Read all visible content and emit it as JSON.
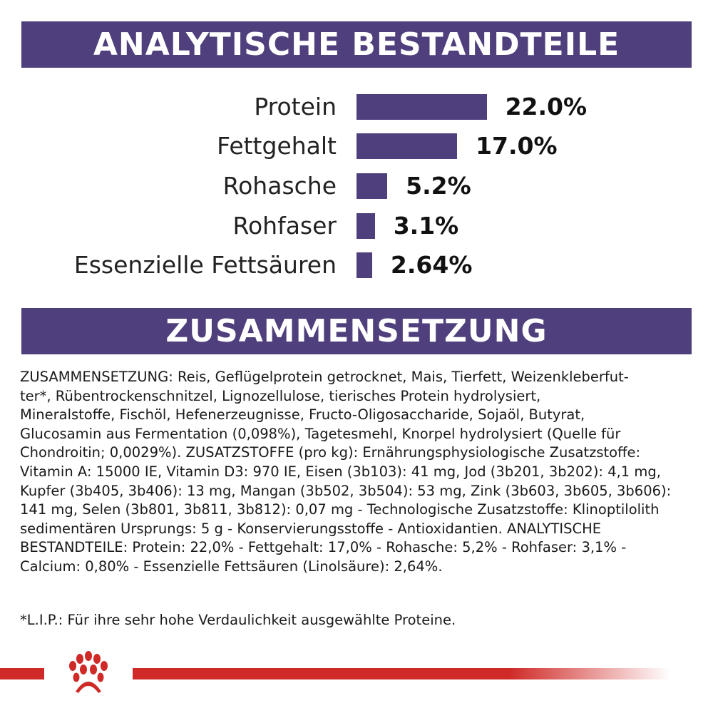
{
  "section1": {
    "title": "ANALYTISCHE BESTANDTEILE"
  },
  "chart_data": {
    "type": "bar",
    "orientation": "horizontal",
    "categories": [
      "Protein",
      "Fettgehalt",
      "Rohasche",
      "Rohfaser",
      "Essenzielle Fettsäuren"
    ],
    "values": [
      22.0,
      17.0,
      5.2,
      3.1,
      2.64
    ],
    "value_labels": [
      "22.0%",
      "17.0%",
      "5.2%",
      "3.1%",
      "2.64%"
    ],
    "unit": "%",
    "bar_color": "#4f3f7c"
  },
  "section2": {
    "title": "ZUSAMMENSETZUNG",
    "lines": [
      "ZUSAMMENSETZUNG: Reis, Geflügelprotein getrocknet, Mais, Tierfett, Weizenkleberfut-",
      "ter*, Rübentrockenschnitzel, Lignozellulose, tierisches Protein hydrolysiert,",
      "Mineralstoffe, Fischöl, Hefenerzeugnisse, Fructo-Oligosaccharide, Sojaöl, Butyrat,",
      "Glucosamin aus Fermentation (0,098%), Tagetesmehl, Knorpel hydrolysiert (Quelle für",
      "Chondroitin; 0,0029%). ZUSATZSTOFFE (pro kg): Ernährungsphysiologische Zusatzstoffe:",
      "Vitamin A: 15000 IE, Vitamin D3: 970 IE, Eisen (3b103): 41 mg, Jod (3b201, 3b202): 4,1 mg,",
      "Kupfer (3b405, 3b406): 13 mg, Mangan (3b502, 3b504): 53 mg, Zink (3b603, 3b605, 3b606):",
      "141 mg, Selen (3b801, 3b811, 3b812): 0,07 mg - Technologische Zusatzstoffe: Klinoptilolith",
      "sedimentären Ursprungs: 5 g - Konservierungsstoffe - Antioxidantien. ANALYTISCHE",
      "BESTANDTEILE: Protein: 22,0% - Fettgehalt: 17,0% - Rohasche: 5,2% - Rohfaser: 3,1% -",
      "Calcium: 0,80% - Essenzielle Fettsäuren (Linolsäure): 2,64%."
    ],
    "footnote": "*L.I.P.: Für ihre sehr hohe Verdaulichkeit ausgewählte Proteine."
  },
  "footer": {
    "logo_icon": "royal-canin-crown-icon",
    "accent_color": "#cf2a27"
  }
}
